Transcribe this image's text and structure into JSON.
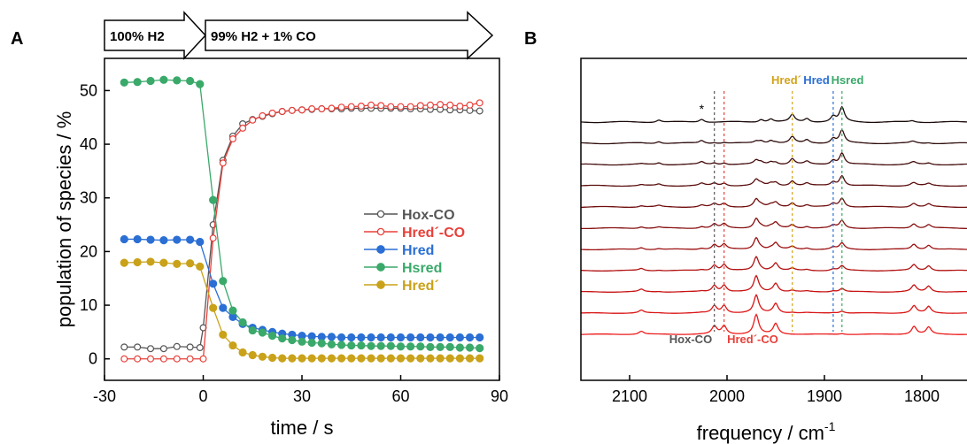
{
  "panels": {
    "a_label": "A",
    "b_label": "B"
  },
  "arrows": {
    "first": "100% H2",
    "second": "99% H2 + 1% CO"
  },
  "chart_data": [
    {
      "panel": "A",
      "type": "scatter",
      "xlabel": "time / s",
      "ylabel": "population of species / %",
      "xlim": [
        -30,
        90
      ],
      "ylim": [
        -4,
        56
      ],
      "xticks": [
        -30,
        0,
        30,
        60,
        90
      ],
      "xtick_labels": [
        "-30",
        "0",
        "30",
        "60",
        "90"
      ],
      "yticks": [
        0,
        10,
        20,
        30,
        40,
        50
      ],
      "ytick_labels": [
        "0",
        "10",
        "20",
        "30",
        "40",
        "50"
      ],
      "legend_position": "right-middle",
      "grid": false,
      "series": [
        {
          "name": "Hox-CO",
          "color": "#555555",
          "marker": "open",
          "x": [
            -24,
            -20,
            -16,
            -12,
            -8,
            -4,
            -1,
            0,
            3,
            6,
            9,
            12,
            15,
            18,
            21,
            24,
            27,
            30,
            33,
            36,
            39,
            42,
            45,
            48,
            51,
            54,
            57,
            60,
            63,
            66,
            69,
            72,
            75,
            78,
            81,
            84
          ],
          "y": [
            2.2,
            2.2,
            1.9,
            1.9,
            2.3,
            2.2,
            2.1,
            5.8,
            25,
            37,
            41.5,
            43.8,
            44.6,
            45.2,
            45.7,
            46.1,
            46.3,
            46.4,
            46.5,
            46.6,
            46.6,
            46.6,
            46.7,
            46.7,
            46.7,
            46.7,
            46.7,
            46.7,
            46.6,
            46.6,
            46.5,
            46.5,
            46.4,
            46.4,
            46.3,
            46.2
          ]
        },
        {
          "name": "Hred´-CO",
          "color": "#e8403a",
          "marker": "open",
          "x": [
            -24,
            -20,
            -16,
            -12,
            -8,
            -4,
            0,
            3,
            6,
            9,
            12,
            15,
            18,
            21,
            24,
            27,
            30,
            33,
            36,
            39,
            42,
            45,
            48,
            51,
            54,
            57,
            60,
            63,
            66,
            69,
            72,
            75,
            78,
            81,
            84
          ],
          "y": [
            0,
            0,
            0,
            0,
            0,
            0,
            0,
            22.5,
            36.5,
            41,
            43,
            44.5,
            45.3,
            45.8,
            46.1,
            46.3,
            46.4,
            46.6,
            46.6,
            46.7,
            46.9,
            47,
            47.1,
            47.3,
            47.2,
            47,
            47,
            47,
            47.2,
            47.3,
            47.4,
            47.3,
            47.1,
            47.3,
            47.7
          ]
        },
        {
          "name": "Hred",
          "color": "#2b6fd4",
          "marker": "filled",
          "x": [
            -24,
            -20,
            -16,
            -12,
            -8,
            -4,
            -1,
            3,
            6,
            9,
            12,
            15,
            18,
            21,
            24,
            27,
            30,
            33,
            36,
            39,
            42,
            45,
            48,
            51,
            54,
            57,
            60,
            63,
            66,
            69,
            72,
            75,
            78,
            81,
            84
          ],
          "y": [
            22.3,
            22.3,
            22.2,
            22.1,
            22.2,
            22.2,
            21.8,
            14,
            9.5,
            7.8,
            6.5,
            5.8,
            5.4,
            5,
            4.7,
            4.5,
            4.3,
            4.2,
            4.1,
            4.1,
            4,
            4,
            4,
            4,
            4,
            4,
            4,
            4,
            4,
            4,
            4,
            4,
            4,
            4,
            4
          ]
        },
        {
          "name": "Hsred",
          "color": "#3aa96a",
          "marker": "filled",
          "x": [
            -24,
            -20,
            -16,
            -12,
            -8,
            -4,
            -1,
            3,
            6,
            9,
            12,
            15,
            18,
            21,
            24,
            27,
            30,
            33,
            36,
            39,
            42,
            45,
            48,
            51,
            54,
            57,
            60,
            63,
            66,
            69,
            72,
            75,
            78,
            81,
            84
          ],
          "y": [
            51.5,
            51.6,
            51.8,
            52,
            51.9,
            51.8,
            51.2,
            29.6,
            14.5,
            9,
            6.8,
            5.3,
            4.9,
            4.3,
            3.8,
            3.5,
            3.2,
            3,
            2.9,
            2.7,
            2.6,
            2.5,
            2.5,
            2.4,
            2.4,
            2.4,
            2.3,
            2.3,
            2.3,
            2.2,
            2.2,
            2.2,
            2.1,
            2.1,
            2
          ]
        },
        {
          "name": "Hred´",
          "color": "#c9a21a",
          "marker": "filled",
          "x": [
            -24,
            -20,
            -16,
            -12,
            -8,
            -4,
            -1,
            3,
            6,
            9,
            12,
            15,
            18,
            21,
            24,
            27,
            30,
            33,
            36,
            39,
            42,
            45,
            48,
            51,
            54,
            57,
            60,
            63,
            66,
            69,
            72,
            75,
            78,
            81,
            84
          ],
          "y": [
            17.9,
            18,
            18.1,
            17.9,
            17.7,
            17.8,
            17.2,
            9.5,
            4.5,
            2.5,
            1.2,
            0.7,
            0.4,
            0.2,
            0.1,
            0.1,
            0.1,
            0.1,
            0.1,
            0.1,
            0.1,
            0.1,
            0.1,
            0.1,
            0.1,
            0.1,
            0.1,
            0.1,
            0.1,
            0.1,
            0.1,
            0.1,
            0.1,
            0.1,
            0.1
          ]
        }
      ]
    },
    {
      "panel": "B",
      "type": "line",
      "xlabel": "frequency / cm",
      "xlabel_superscript": "-1",
      "xlim": [
        2150,
        1750
      ],
      "x_reversed": true,
      "xticks": [
        2100,
        2000,
        1900,
        1800
      ],
      "xtick_labels": [
        "2100",
        "2000",
        "1900",
        "1800"
      ],
      "marker_lines": [
        {
          "name": "Hox-CO",
          "x": 2013,
          "color": "#555555",
          "label_position": "bottom"
        },
        {
          "name": "Hred´-CO",
          "x": 2003,
          "color": "#e8403a",
          "label_position": "bottom"
        },
        {
          "name": "Hred´",
          "x": 1933,
          "color": "#d4a21a",
          "label_position": "top"
        },
        {
          "name": "Hred",
          "x": 1891,
          "color": "#2b6fd4",
          "label_position": "top"
        },
        {
          "name": "Hsred",
          "x": 1882,
          "color": "#3aa96a",
          "label_position": "top"
        }
      ],
      "asterisk": {
        "text": "*",
        "x": 2026
      },
      "spectra_count": 11,
      "spectra_colors": [
        "#1a0a0a",
        "#2e0b0b",
        "#440c0c",
        "#5a0d0d",
        "#700e0e",
        "#860f0f",
        "#9c1010",
        "#b21111",
        "#c81212",
        "#da1414",
        "#ec1a1a"
      ],
      "peaks_initial": [
        {
          "x": 2070,
          "h": 0.25
        },
        {
          "x": 2026,
          "h": 0.35
        },
        {
          "x": 1965,
          "h": 0.3
        },
        {
          "x": 1955,
          "h": 0.35
        },
        {
          "x": 1933,
          "h": 0.8
        },
        {
          "x": 1918,
          "h": 0.4
        },
        {
          "x": 1891,
          "h": 0.6
        },
        {
          "x": 1882,
          "h": 1.6
        },
        {
          "x": 1810,
          "h": 0.15
        }
      ],
      "peaks_final": [
        {
          "x": 2088,
          "h": 0.35
        },
        {
          "x": 2013,
          "h": 0.9
        },
        {
          "x": 2003,
          "h": 0.95
        },
        {
          "x": 1970,
          "h": 2.2
        },
        {
          "x": 1950,
          "h": 1.2
        },
        {
          "x": 1882,
          "h": 0.08
        },
        {
          "x": 1808,
          "h": 0.9
        },
        {
          "x": 1793,
          "h": 0.8
        }
      ]
    }
  ]
}
